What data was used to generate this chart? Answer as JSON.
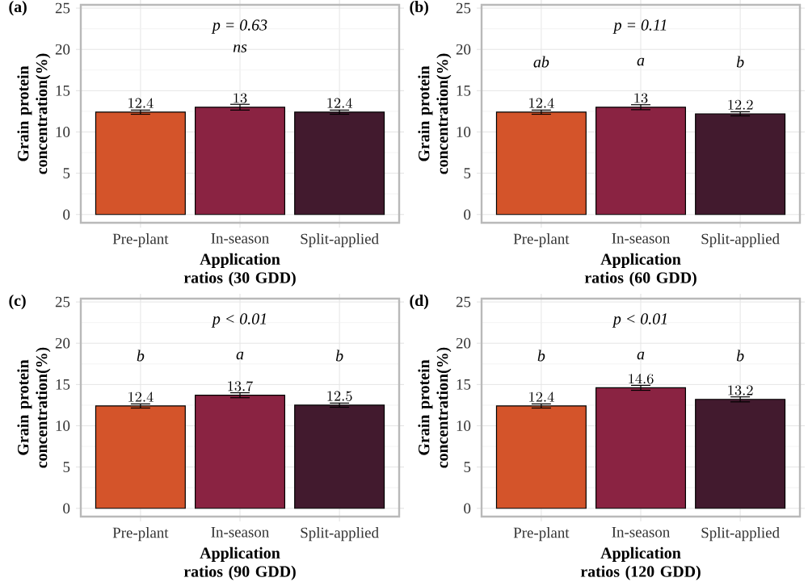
{
  "chart_data": [
    {
      "type": "bar",
      "title": "(a)",
      "ylabel": "Grain protein concentration(%)",
      "xlabel": "Application ratios (30 GDD)",
      "categories": [
        "Pre-plant",
        "In-season",
        "Split-applied"
      ],
      "values": [
        12.4,
        13,
        12.4
      ],
      "errors": [
        0.25,
        0.35,
        0.25
      ],
      "colors": [
        "#d4542a",
        "#8a2342",
        "#421a2e"
      ],
      "ylim": [
        -1,
        25.4
      ],
      "yticks": [
        0,
        5,
        10,
        15,
        20,
        25
      ],
      "grid": true,
      "data_labels": true,
      "annotations": [
        "p = 0.63",
        "ns"
      ]
    },
    {
      "type": "bar",
      "title": "(b)",
      "ylabel": "Grain protein concentration(%)",
      "xlabel": "Application ratios (60 GDD)",
      "categories": [
        "Pre-plant",
        "In-season",
        "Split-applied"
      ],
      "values": [
        12.4,
        13,
        12.2
      ],
      "errors": [
        0.25,
        0.3,
        0.25
      ],
      "colors": [
        "#d4542a",
        "#8a2342",
        "#421a2e"
      ],
      "ylim": [
        -1,
        25.4
      ],
      "yticks": [
        0,
        5,
        10,
        15,
        20,
        25
      ],
      "grid": true,
      "data_labels": true,
      "annotations": [
        "p = 0.11",
        "ab",
        "a",
        "b"
      ]
    },
    {
      "type": "bar",
      "title": "(c)",
      "ylabel": "Grain protein concentration(%)",
      "xlabel": "Application ratios (90 GDD)",
      "categories": [
        "Pre-plant",
        "In-season",
        "Split-applied"
      ],
      "values": [
        12.4,
        13.7,
        12.5
      ],
      "errors": [
        0.25,
        0.3,
        0.25
      ],
      "colors": [
        "#d4542a",
        "#8a2342",
        "#421a2e"
      ],
      "ylim": [
        -1,
        25.4
      ],
      "yticks": [
        0,
        5,
        10,
        15,
        20,
        25
      ],
      "grid": true,
      "data_labels": true,
      "annotations": [
        "p < 0.01",
        "b",
        "a",
        "b"
      ]
    },
    {
      "type": "bar",
      "title": "(d)",
      "ylabel": "Grain protein concentration(%)",
      "xlabel": "Application ratios (120 GDD)",
      "categories": [
        "Pre-plant",
        "In-season",
        "Split-applied"
      ],
      "values": [
        12.4,
        14.6,
        13.2
      ],
      "errors": [
        0.25,
        0.3,
        0.3
      ],
      "colors": [
        "#d4542a",
        "#8a2342",
        "#421a2e"
      ],
      "ylim": [
        -1,
        25.4
      ],
      "yticks": [
        0,
        5,
        10,
        15,
        20,
        25
      ],
      "grid": true,
      "data_labels": true,
      "annotations": [
        "p < 0.01",
        "b",
        "a",
        "b"
      ]
    }
  ]
}
